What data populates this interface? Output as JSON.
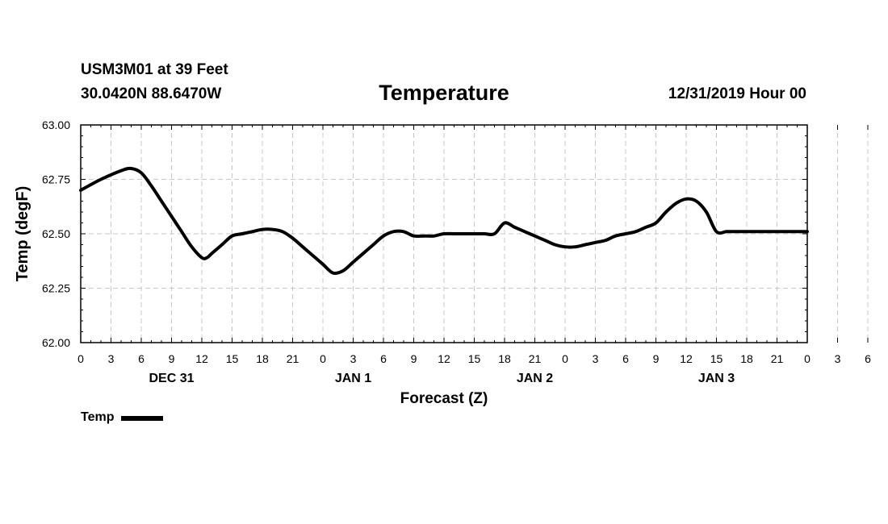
{
  "header": {
    "station": "USM3M01 at 39 Feet",
    "coords": "30.0420N 88.6470W",
    "datetime": "12/31/2019 Hour 00"
  },
  "chart_data": {
    "type": "line",
    "title": "Temperature",
    "xlabel": "Forecast (Z)",
    "ylabel": "Temp (degF)",
    "ylim": [
      62.0,
      63.0
    ],
    "yticks": [
      "62.00",
      "62.25",
      "62.50",
      "62.75",
      "63.00"
    ],
    "xlim": [
      0,
      72
    ],
    "xtick_labels": [
      "0",
      "3",
      "6",
      "9",
      "12",
      "15",
      "18",
      "21",
      "0",
      "3",
      "6",
      "9",
      "12",
      "15",
      "18",
      "21",
      "0",
      "3",
      "6",
      "9",
      "12",
      "15",
      "18",
      "21",
      "0",
      "3",
      "6",
      "9",
      "12",
      "15",
      "18",
      "21",
      "0"
    ],
    "day_labels": [
      {
        "label": "DEC 31",
        "hour": 9
      },
      {
        "label": "JAN 1",
        "hour": 27
      },
      {
        "label": "JAN 2",
        "hour": 45
      },
      {
        "label": "JAN 3",
        "hour": 63
      }
    ],
    "grid": true,
    "series": [
      {
        "name": "Temp",
        "color": "#000000",
        "x": [
          0,
          2,
          4,
          5,
          6,
          7,
          8,
          9,
          10,
          11,
          12,
          12.5,
          13,
          14,
          15,
          16,
          17,
          18,
          19,
          20,
          21,
          22,
          23,
          24,
          25,
          26,
          27,
          28,
          29,
          30,
          31,
          32,
          33,
          34,
          35,
          36,
          37,
          38,
          39,
          40,
          41,
          42,
          43,
          44,
          45,
          46,
          47,
          48,
          49,
          50,
          51,
          52,
          53,
          54,
          55,
          56,
          57,
          58,
          59,
          60,
          61,
          62,
          63,
          64,
          65,
          66,
          67,
          68,
          69,
          70,
          71,
          72
        ],
        "values": [
          62.7,
          62.75,
          62.79,
          62.8,
          62.78,
          62.72,
          62.65,
          62.58,
          62.51,
          62.44,
          62.39,
          62.39,
          62.41,
          62.45,
          62.49,
          62.5,
          62.51,
          62.52,
          62.52,
          62.51,
          62.48,
          62.44,
          62.4,
          62.36,
          62.32,
          62.33,
          62.37,
          62.41,
          62.45,
          62.49,
          62.51,
          62.51,
          62.49,
          62.49,
          62.49,
          62.5,
          62.5,
          62.5,
          62.5,
          62.5,
          62.5,
          62.55,
          62.53,
          62.51,
          62.49,
          62.47,
          62.45,
          62.44,
          62.44,
          62.45,
          62.46,
          62.47,
          62.49,
          62.5,
          62.51,
          62.53,
          62.55,
          62.6,
          62.64,
          62.66,
          62.65,
          62.6,
          62.51,
          62.51,
          62.51,
          62.51,
          62.51,
          62.51,
          62.51,
          62.51,
          62.51,
          62.51
        ]
      }
    ],
    "legend": {
      "label": "Temp",
      "position": "bottom-left"
    }
  }
}
